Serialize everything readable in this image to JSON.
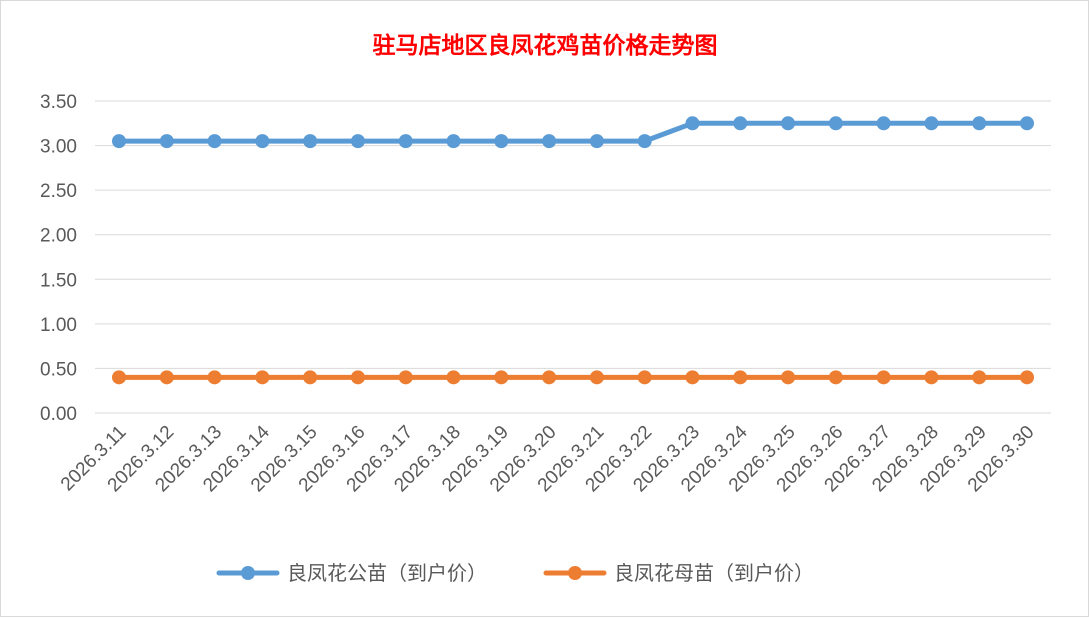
{
  "chart_data": {
    "type": "line",
    "title": "驻马店地区良凤花鸡苗价格走势图",
    "title_color": "#ff0000",
    "xlabel": "",
    "ylabel": "",
    "categories": [
      "2026.3.11",
      "2026.3.12",
      "2026.3.13",
      "2026.3.14",
      "2026.3.15",
      "2026.3.16",
      "2026.3.17",
      "2026.3.18",
      "2026.3.19",
      "2026.3.20",
      "2026.3.21",
      "2026.3.22",
      "2026.3.23",
      "2026.3.24",
      "2026.3.25",
      "2026.3.26",
      "2026.3.27",
      "2026.3.28",
      "2026.3.29",
      "2026.3.30"
    ],
    "ylim": [
      0,
      3.5
    ],
    "yticks": [
      "0.00",
      "0.50",
      "1.00",
      "1.50",
      "2.00",
      "2.50",
      "3.00",
      "3.50"
    ],
    "grid": true,
    "legend_position": "bottom",
    "series": [
      {
        "name": "良凤花公苗（到户价）",
        "color": "#5b9bd5",
        "values": [
          3.05,
          3.05,
          3.05,
          3.05,
          3.05,
          3.05,
          3.05,
          3.05,
          3.05,
          3.05,
          3.05,
          3.05,
          3.25,
          3.25,
          3.25,
          3.25,
          3.25,
          3.25,
          3.25,
          3.25
        ]
      },
      {
        "name": "良凤花母苗（到户价）",
        "color": "#ed7d31",
        "values": [
          0.4,
          0.4,
          0.4,
          0.4,
          0.4,
          0.4,
          0.4,
          0.4,
          0.4,
          0.4,
          0.4,
          0.4,
          0.4,
          0.4,
          0.4,
          0.4,
          0.4,
          0.4,
          0.4,
          0.4
        ]
      }
    ]
  }
}
